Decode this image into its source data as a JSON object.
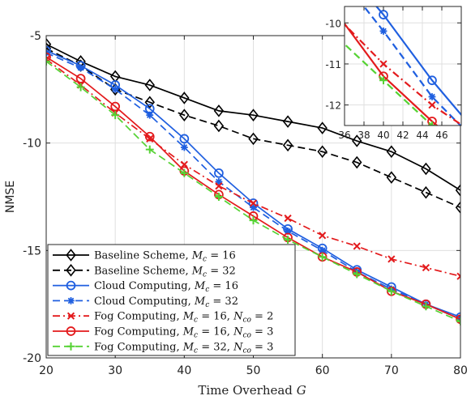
{
  "chart_data": {
    "type": "line",
    "xlabel": "Time Overhead G",
    "ylabel": "NMSE",
    "xlim": [
      20,
      80
    ],
    "ylim": [
      -20,
      -5
    ],
    "xticks": [
      20,
      30,
      40,
      50,
      60,
      70,
      80
    ],
    "yticks": [
      -5,
      -10,
      -15,
      -20
    ],
    "legend_position": "bottom-left",
    "grid": true,
    "series": [
      {
        "name": "Baseline Scheme, M_c = 16",
        "color": "#000000",
        "dash": "solid",
        "marker": "diamond",
        "x": [
          20,
          25,
          30,
          35,
          40,
          45,
          50,
          55,
          60,
          65,
          70,
          75,
          80
        ],
        "y": [
          -5.4,
          -6.2,
          -6.9,
          -7.3,
          -7.9,
          -8.5,
          -8.7,
          -9.0,
          -9.3,
          -9.9,
          -10.4,
          -11.2,
          -12.2
        ]
      },
      {
        "name": "Baseline Scheme, M_c = 32",
        "color": "#000000",
        "dash": "dashed",
        "marker": "diamond",
        "x": [
          20,
          25,
          30,
          35,
          40,
          45,
          50,
          55,
          60,
          65,
          70,
          75,
          80
        ],
        "y": [
          -5.6,
          -6.4,
          -7.5,
          -8.1,
          -8.7,
          -9.2,
          -9.8,
          -10.1,
          -10.4,
          -10.9,
          -11.6,
          -12.3,
          -13.0
        ]
      },
      {
        "name": "Cloud Computing, M_c = 16",
        "color": "#1f5fe0",
        "dash": "solid",
        "marker": "circle",
        "x": [
          20,
          25,
          30,
          35,
          40,
          45,
          50,
          55,
          60,
          65,
          70,
          75,
          80
        ],
        "y": [
          -5.7,
          -6.4,
          -7.3,
          -8.4,
          -9.8,
          -11.4,
          -12.8,
          -14.0,
          -14.9,
          -15.9,
          -16.7,
          -17.5,
          -18.1
        ]
      },
      {
        "name": "Cloud Computing, M_c = 32",
        "color": "#1f5fe0",
        "dash": "dashed",
        "marker": "star",
        "x": [
          20,
          25,
          30,
          35,
          40,
          45,
          50,
          55,
          60,
          65,
          70,
          75,
          80
        ],
        "y": [
          -5.8,
          -6.5,
          -7.5,
          -8.7,
          -10.2,
          -11.8,
          -13.0,
          -14.1,
          -15.0,
          -16.0,
          -16.8,
          -17.5,
          -18.2
        ]
      },
      {
        "name": "Fog Computing, M_c = 16, N_co = 2",
        "color": "#e31a1c",
        "dash": "dashdot",
        "marker": "x",
        "x": [
          20,
          25,
          30,
          35,
          40,
          45,
          50,
          55,
          60,
          65,
          70,
          75,
          80
        ],
        "y": [
          -6.1,
          -7.3,
          -8.6,
          -9.8,
          -11.0,
          -12.0,
          -12.8,
          -13.5,
          -14.3,
          -14.8,
          -15.4,
          -15.8,
          -16.2
        ]
      },
      {
        "name": "Fog Computing, M_c = 16, N_co = 3",
        "color": "#e31a1c",
        "dash": "solid",
        "marker": "circle",
        "x": [
          20,
          25,
          30,
          35,
          40,
          45,
          50,
          55,
          60,
          65,
          70,
          75,
          80
        ],
        "y": [
          -6.0,
          -7.0,
          -8.3,
          -9.7,
          -11.3,
          -12.4,
          -13.4,
          -14.4,
          -15.3,
          -16.0,
          -16.9,
          -17.5,
          -18.2
        ]
      },
      {
        "name": "Fog Computing, M_c = 32, N_co = 3",
        "color": "#55d233",
        "dash": "dashed",
        "marker": "plus",
        "x": [
          20,
          25,
          30,
          35,
          40,
          45,
          50,
          55,
          60,
          65,
          70,
          75,
          80
        ],
        "y": [
          -6.2,
          -7.4,
          -8.7,
          -10.3,
          -11.4,
          -12.5,
          -13.6,
          -14.5,
          -15.3,
          -16.1,
          -16.9,
          -17.6,
          -18.3
        ]
      }
    ],
    "inset": {
      "xlim": [
        36,
        48
      ],
      "ylim": [
        -12.5,
        -9.6
      ],
      "xticks": [
        36,
        38,
        40,
        42,
        44,
        46
      ],
      "yticks": [
        -10,
        -11,
        -12
      ]
    }
  },
  "legend": {
    "entries": [
      {
        "prefix": "Baseline Scheme,",
        "m": "16",
        "n": ""
      },
      {
        "prefix": "Baseline Scheme,",
        "m": "32",
        "n": ""
      },
      {
        "prefix": "Cloud Computing,",
        "m": "16",
        "n": ""
      },
      {
        "prefix": "Cloud Computing,",
        "m": "32",
        "n": ""
      },
      {
        "prefix": "Fog Computing,",
        "m": "16",
        "n": "2"
      },
      {
        "prefix": "Fog Computing,",
        "m": "16",
        "n": "3"
      },
      {
        "prefix": "Fog Computing,",
        "m": "32",
        "n": "3"
      }
    ]
  },
  "labels": {
    "xlabel_main": "Time Overhead",
    "xlabel_var": "G",
    "ylabel": "NMSE"
  }
}
